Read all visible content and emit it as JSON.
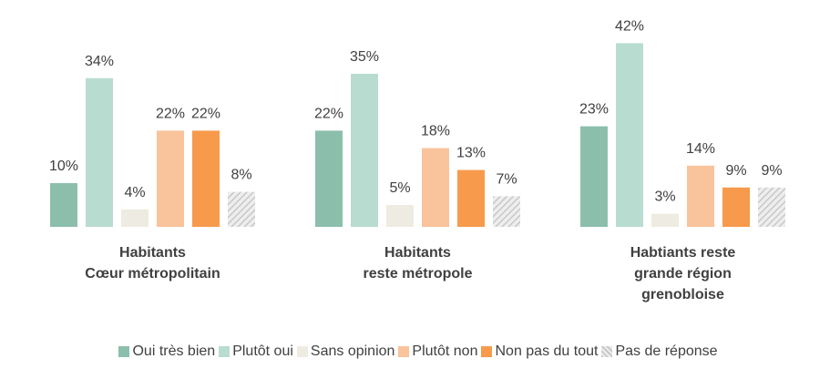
{
  "chart_data": {
    "type": "bar",
    "categories": [
      "Habitants\nCœur métropolitain",
      "Habitants\nreste métropole",
      "Habtiants reste\ngrande région\ngrenobloise"
    ],
    "series": [
      {
        "name": "Oui très bien",
        "color": "#8cbfab",
        "values": [
          10,
          22,
          23
        ],
        "value_labels": [
          "10%",
          "22%",
          "23%"
        ]
      },
      {
        "name": "Plutôt oui",
        "color": "#b9dcd0",
        "values": [
          34,
          35,
          42
        ],
        "value_labels": [
          "34%",
          "35%",
          "42%"
        ]
      },
      {
        "name": "Sans opinion",
        "color": "#eeebe2",
        "values": [
          4,
          5,
          3
        ],
        "value_labels": [
          "4%",
          "5%",
          "3%"
        ]
      },
      {
        "name": "Plutôt non",
        "color": "#f9c39b",
        "values": [
          22,
          18,
          14
        ],
        "value_labels": [
          "22%",
          "18%",
          "14%"
        ]
      },
      {
        "name": "Non pas du tout",
        "color": "#f79a4c",
        "values": [
          22,
          13,
          9
        ],
        "value_labels": [
          "22%",
          "13%",
          "9%"
        ]
      },
      {
        "name": "Pas de réponse",
        "color": "#c8c8c8",
        "hatch": true,
        "values": [
          8,
          7,
          9
        ],
        "value_labels": [
          "8%",
          "7%",
          "9%"
        ]
      }
    ],
    "legend": "bottom"
  }
}
